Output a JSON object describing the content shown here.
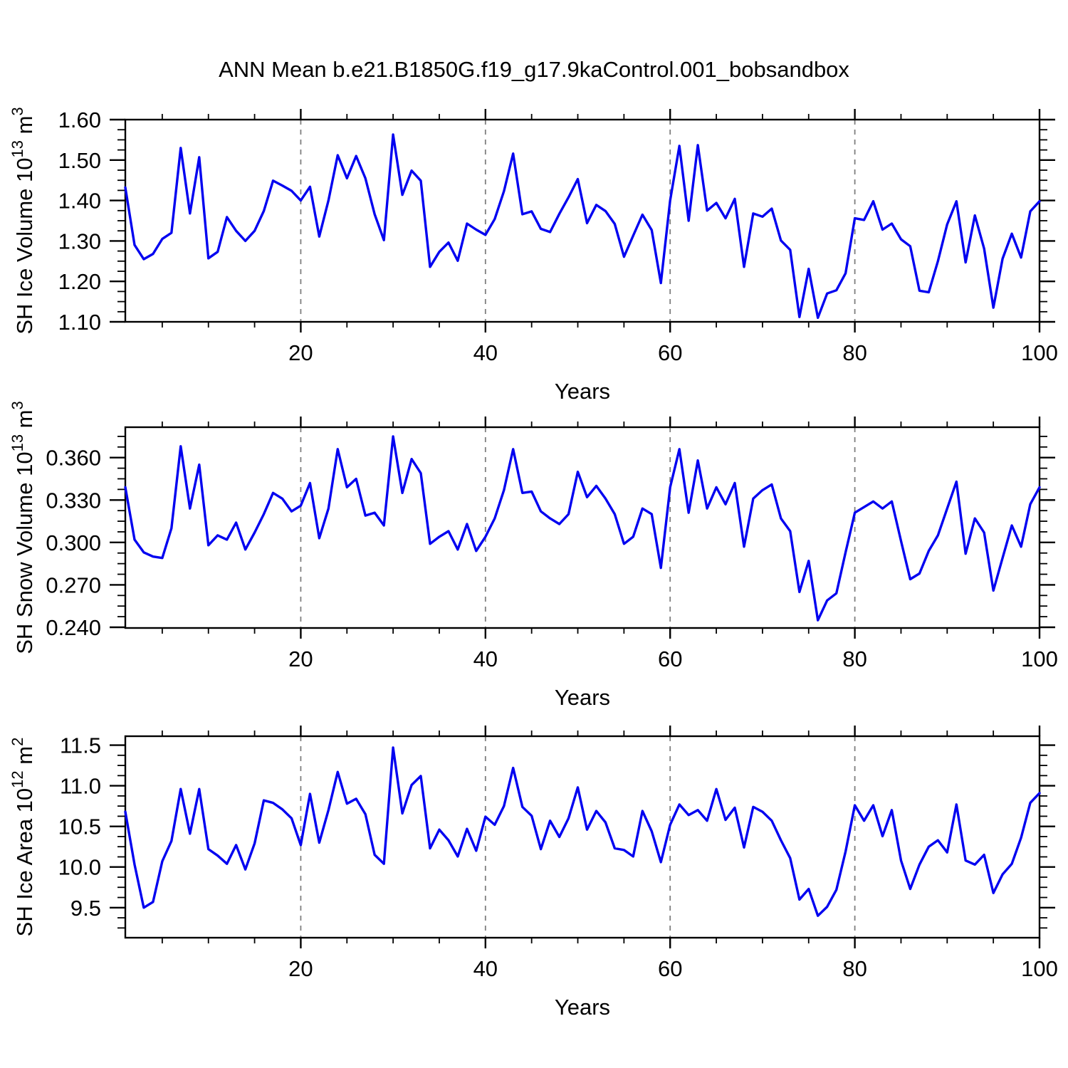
{
  "title": "ANN Mean b.e21.B1850G.f19_g17.9kaControl.001_bobsandbox",
  "line_color": "#0202f0",
  "grid_color": "#7f7f7f",
  "frame_color": "#000000",
  "x_axis": {
    "label": "Years",
    "min": 1,
    "max": 100,
    "major_ticks": [
      {
        "v": 20,
        "label": "20"
      },
      {
        "v": 40,
        "label": "40"
      },
      {
        "v": 60,
        "label": "60"
      },
      {
        "v": 80,
        "label": "80"
      },
      {
        "v": 100,
        "label": "100"
      }
    ],
    "minor_step": 5,
    "gridlines": [
      20,
      40,
      60,
      80
    ]
  },
  "chart_data": [
    {
      "type": "line",
      "name": "sh-ice-volume",
      "ylabel": {
        "text": "SH Ice Volume 10",
        "exp": "13",
        "unit": " m",
        "unit_exp": "3"
      },
      "ylim": [
        1.1,
        1.6
      ],
      "yticks": [
        {
          "v": 1.1,
          "label": "1.10"
        },
        {
          "v": 1.2,
          "label": "1.20"
        },
        {
          "v": 1.3,
          "label": "1.30"
        },
        {
          "v": 1.4,
          "label": "1.40"
        },
        {
          "v": 1.5,
          "label": "1.50"
        },
        {
          "v": 1.6,
          "label": "1.60"
        }
      ],
      "y_minor_step": 0.025,
      "x_start": 1,
      "x_step": 1,
      "values": [
        1.432,
        1.29,
        1.255,
        1.268,
        1.305,
        1.32,
        1.53,
        1.368,
        1.507,
        1.257,
        1.273,
        1.359,
        1.325,
        1.3,
        1.325,
        1.374,
        1.449,
        1.437,
        1.424,
        1.4,
        1.434,
        1.311,
        1.4,
        1.512,
        1.455,
        1.51,
        1.455,
        1.366,
        1.302,
        1.563,
        1.414,
        1.474,
        1.449,
        1.236,
        1.273,
        1.296,
        1.251,
        1.343,
        1.328,
        1.315,
        1.354,
        1.423,
        1.516,
        1.366,
        1.373,
        1.33,
        1.322,
        1.367,
        1.408,
        1.453,
        1.344,
        1.389,
        1.374,
        1.342,
        1.261,
        1.313,
        1.365,
        1.327,
        1.196,
        1.4,
        1.535,
        1.35,
        1.537,
        1.375,
        1.394,
        1.356,
        1.404,
        1.236,
        1.368,
        1.36,
        1.38,
        1.301,
        1.278,
        1.112,
        1.231,
        1.11,
        1.17,
        1.178,
        1.22,
        1.356,
        1.352,
        1.398,
        1.328,
        1.343,
        1.304,
        1.287,
        1.177,
        1.173,
        1.25,
        1.341,
        1.398,
        1.247,
        1.363,
        1.281,
        1.135,
        1.256,
        1.318,
        1.259,
        1.373,
        1.398
      ]
    },
    {
      "type": "line",
      "name": "sh-snow-volume",
      "ylabel": {
        "text": "SH Snow Volume 10",
        "exp": "13",
        "unit": " m",
        "unit_exp": "3"
      },
      "ylim": [
        0.2395,
        0.3815
      ],
      "yticks": [
        {
          "v": 0.24,
          "label": "0.240"
        },
        {
          "v": 0.27,
          "label": "0.270"
        },
        {
          "v": 0.3,
          "label": "0.300"
        },
        {
          "v": 0.33,
          "label": "0.330"
        },
        {
          "v": 0.36,
          "label": "0.360"
        }
      ],
      "y_minor_step": 0.0075,
      "x_start": 1,
      "x_step": 1,
      "values": [
        0.339,
        0.302,
        0.293,
        0.29,
        0.289,
        0.31,
        0.368,
        0.324,
        0.355,
        0.298,
        0.305,
        0.302,
        0.314,
        0.295,
        0.307,
        0.32,
        0.335,
        0.331,
        0.322,
        0.326,
        0.342,
        0.303,
        0.324,
        0.366,
        0.339,
        0.345,
        0.319,
        0.321,
        0.312,
        0.375,
        0.335,
        0.359,
        0.349,
        0.299,
        0.304,
        0.308,
        0.295,
        0.313,
        0.294,
        0.304,
        0.317,
        0.337,
        0.366,
        0.335,
        0.336,
        0.322,
        0.317,
        0.313,
        0.32,
        0.35,
        0.332,
        0.34,
        0.331,
        0.32,
        0.299,
        0.304,
        0.324,
        0.32,
        0.282,
        0.339,
        0.366,
        0.321,
        0.358,
        0.324,
        0.339,
        0.327,
        0.342,
        0.297,
        0.331,
        0.337,
        0.341,
        0.317,
        0.308,
        0.265,
        0.287,
        0.245,
        0.259,
        0.264,
        0.293,
        0.321,
        0.325,
        0.329,
        0.324,
        0.329,
        0.301,
        0.274,
        0.278,
        0.294,
        0.305,
        0.324,
        0.343,
        0.292,
        0.317,
        0.307,
        0.266,
        0.289,
        0.312,
        0.297,
        0.327,
        0.339
      ]
    },
    {
      "type": "line",
      "name": "sh-ice-area",
      "ylabel": {
        "text": "SH Ice Area 10",
        "exp": "12",
        "unit": " m",
        "unit_exp": "2"
      },
      "ylim": [
        9.13,
        11.61
      ],
      "yticks": [
        {
          "v": 9.5,
          "label": "9.5"
        },
        {
          "v": 10.0,
          "label": "10.0"
        },
        {
          "v": 10.5,
          "label": "10.5"
        },
        {
          "v": 11.0,
          "label": "11.0"
        },
        {
          "v": 11.5,
          "label": "11.5"
        }
      ],
      "y_minor_step": 0.125,
      "x_start": 1,
      "x_step": 1,
      "values": [
        10.68,
        10.03,
        9.5,
        9.57,
        10.07,
        10.32,
        10.96,
        10.41,
        10.96,
        10.22,
        10.14,
        10.04,
        10.27,
        9.97,
        10.29,
        10.82,
        10.79,
        10.71,
        10.6,
        10.27,
        10.9,
        10.3,
        10.7,
        11.17,
        10.78,
        10.84,
        10.65,
        10.15,
        10.04,
        11.47,
        10.66,
        11.01,
        11.12,
        10.23,
        10.46,
        10.33,
        10.13,
        10.47,
        10.2,
        10.62,
        10.52,
        10.75,
        11.22,
        10.74,
        10.63,
        10.22,
        10.57,
        10.37,
        10.6,
        10.98,
        10.46,
        10.69,
        10.55,
        10.23,
        10.21,
        10.13,
        10.69,
        10.44,
        10.06,
        10.52,
        10.77,
        10.64,
        10.7,
        10.57,
        10.96,
        10.58,
        10.73,
        10.24,
        10.74,
        10.68,
        10.57,
        10.33,
        10.11,
        9.6,
        9.73,
        9.4,
        9.51,
        9.72,
        10.19,
        10.76,
        10.57,
        10.76,
        10.38,
        10.7,
        10.08,
        9.73,
        10.03,
        10.25,
        10.33,
        10.18,
        10.77,
        10.08,
        10.03,
        10.15,
        9.68,
        9.91,
        10.04,
        10.36,
        10.79,
        10.91
      ]
    }
  ]
}
